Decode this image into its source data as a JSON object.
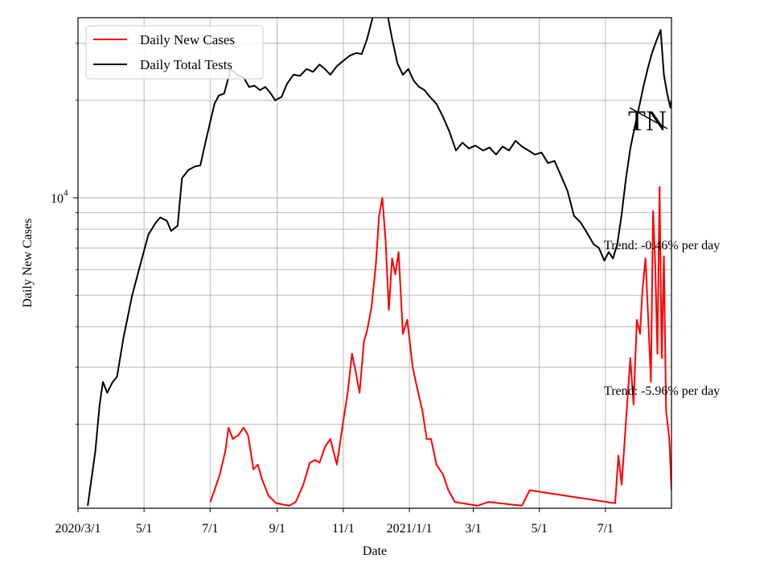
{
  "chart_data": {
    "type": "line",
    "title": "",
    "xlabel": "Date",
    "ylabel": "Daily New Cases",
    "y_scale": "log",
    "xlim": [
      "2020-03-01",
      "2021-08-31"
    ],
    "ylim": [
      1100,
      36000
    ],
    "grid": true,
    "legend_position": "top-left",
    "x_ticks": [
      {
        "date": "2020-03-01",
        "label": "2020/3/1"
      },
      {
        "date": "2020-05-01",
        "label": "5/1"
      },
      {
        "date": "2020-07-01",
        "label": "7/1"
      },
      {
        "date": "2020-09-01",
        "label": "9/1"
      },
      {
        "date": "2020-11-01",
        "label": "11/1"
      },
      {
        "date": "2021-01-01",
        "label": "2021/1/1"
      },
      {
        "date": "2021-03-01",
        "label": "3/1"
      },
      {
        "date": "2021-05-01",
        "label": "5/1"
      },
      {
        "date": "2021-07-01",
        "label": "7/1"
      }
    ],
    "y_major_ticks": [
      {
        "value": 10000,
        "base": "10",
        "exponent": "4"
      }
    ],
    "y_minor_ticks": [
      2000,
      3000,
      4000,
      5000,
      6000,
      7000,
      8000,
      9000,
      20000,
      30000
    ],
    "series": [
      {
        "name": "Daily New Cases",
        "color": "#ff0000",
        "points": [
          [
            "2020-07-01",
            1150
          ],
          [
            "2020-07-05",
            1250
          ],
          [
            "2020-07-10",
            1400
          ],
          [
            "2020-07-15",
            1650
          ],
          [
            "2020-07-18",
            1950
          ],
          [
            "2020-07-22",
            1800
          ],
          [
            "2020-07-27",
            1850
          ],
          [
            "2020-08-01",
            1950
          ],
          [
            "2020-08-05",
            1850
          ],
          [
            "2020-08-10",
            1450
          ],
          [
            "2020-08-14",
            1500
          ],
          [
            "2020-08-18",
            1350
          ],
          [
            "2020-08-24",
            1200
          ],
          [
            "2020-08-31",
            1140
          ],
          [
            "2020-09-06",
            1130
          ],
          [
            "2020-09-12",
            1120
          ],
          [
            "2020-09-18",
            1150
          ],
          [
            "2020-09-25",
            1300
          ],
          [
            "2020-10-01",
            1520
          ],
          [
            "2020-10-06",
            1550
          ],
          [
            "2020-10-10",
            1520
          ],
          [
            "2020-10-15",
            1700
          ],
          [
            "2020-10-20",
            1800
          ],
          [
            "2020-10-26",
            1500
          ],
          [
            "2020-11-01",
            2050
          ],
          [
            "2020-11-05",
            2500
          ],
          [
            "2020-11-09",
            3300
          ],
          [
            "2020-11-12",
            2950
          ],
          [
            "2020-11-16",
            2500
          ],
          [
            "2020-11-20",
            3600
          ],
          [
            "2020-11-23",
            3900
          ],
          [
            "2020-11-27",
            4600
          ],
          [
            "2020-12-01",
            6200
          ],
          [
            "2020-12-04",
            8800
          ],
          [
            "2020-12-07",
            10000
          ],
          [
            "2020-12-10",
            7400
          ],
          [
            "2020-12-13",
            4500
          ],
          [
            "2020-12-16",
            6500
          ],
          [
            "2020-12-19",
            5800
          ],
          [
            "2020-12-22",
            6800
          ],
          [
            "2020-12-26",
            3800
          ],
          [
            "2020-12-30",
            4200
          ],
          [
            "2021-01-04",
            3000
          ],
          [
            "2021-01-08",
            2600
          ],
          [
            "2021-01-13",
            2200
          ],
          [
            "2021-01-17",
            1800
          ],
          [
            "2021-01-21",
            1800
          ],
          [
            "2021-01-26",
            1500
          ],
          [
            "2021-02-01",
            1400
          ],
          [
            "2021-02-06",
            1250
          ],
          [
            "2021-02-12",
            1150
          ],
          [
            "2021-03-05",
            1120
          ],
          [
            "2021-03-15",
            1150
          ],
          [
            "2021-04-15",
            1120
          ],
          [
            "2021-04-22",
            1250
          ],
          [
            "2021-07-10",
            1140
          ],
          [
            "2021-07-13",
            1600
          ],
          [
            "2021-07-16",
            1300
          ],
          [
            "2021-07-20",
            2050
          ],
          [
            "2021-07-24",
            3200
          ],
          [
            "2021-07-27",
            2300
          ],
          [
            "2021-07-30",
            4200
          ],
          [
            "2021-08-02",
            3800
          ],
          [
            "2021-08-04",
            5100
          ],
          [
            "2021-08-07",
            6500
          ],
          [
            "2021-08-10",
            3900
          ],
          [
            "2021-08-12",
            2700
          ],
          [
            "2021-08-14",
            9100
          ],
          [
            "2021-08-16",
            6200
          ],
          [
            "2021-08-18",
            3300
          ],
          [
            "2021-08-20",
            10800
          ],
          [
            "2021-08-22",
            3200
          ],
          [
            "2021-08-24",
            6600
          ],
          [
            "2021-08-26",
            2200
          ],
          [
            "2021-08-29",
            1800
          ],
          [
            "2021-08-31",
            1250
          ]
        ]
      },
      {
        "name": "Daily Total Tests",
        "color": "#000000",
        "points": [
          [
            "2020-03-10",
            1120
          ],
          [
            "2020-03-14",
            1400
          ],
          [
            "2020-03-17",
            1650
          ],
          [
            "2020-03-21",
            2300
          ],
          [
            "2020-03-24",
            2700
          ],
          [
            "2020-03-28",
            2500
          ],
          [
            "2020-04-02",
            2700
          ],
          [
            "2020-04-06",
            2800
          ],
          [
            "2020-04-12",
            3700
          ],
          [
            "2020-04-20",
            5000
          ],
          [
            "2020-04-28",
            6300
          ],
          [
            "2020-05-05",
            7700
          ],
          [
            "2020-05-12",
            8400
          ],
          [
            "2020-05-16",
            8700
          ],
          [
            "2020-05-22",
            8500
          ],
          [
            "2020-05-26",
            7900
          ],
          [
            "2020-06-01",
            8200
          ],
          [
            "2020-06-05",
            11500
          ],
          [
            "2020-06-11",
            12200
          ],
          [
            "2020-06-17",
            12500
          ],
          [
            "2020-06-22",
            12600
          ],
          [
            "2020-06-27",
            15000
          ],
          [
            "2020-07-05",
            19500
          ],
          [
            "2020-07-09",
            20700
          ],
          [
            "2020-07-14",
            21000
          ],
          [
            "2020-07-20",
            25000
          ],
          [
            "2020-07-26",
            24000
          ],
          [
            "2020-08-01",
            23500
          ],
          [
            "2020-08-06",
            22000
          ],
          [
            "2020-08-11",
            22200
          ],
          [
            "2020-08-16",
            21500
          ],
          [
            "2020-08-21",
            22000
          ],
          [
            "2020-08-26",
            21000
          ],
          [
            "2020-08-30",
            20000
          ],
          [
            "2020-09-05",
            20500
          ],
          [
            "2020-09-10",
            22500
          ],
          [
            "2020-09-16",
            24000
          ],
          [
            "2020-09-22",
            23800
          ],
          [
            "2020-09-28",
            25000
          ],
          [
            "2020-10-04",
            24500
          ],
          [
            "2020-10-10",
            25800
          ],
          [
            "2020-10-15",
            25000
          ],
          [
            "2020-10-20",
            24000
          ],
          [
            "2020-10-26",
            25500
          ],
          [
            "2020-11-01",
            26500
          ],
          [
            "2020-11-07",
            27500
          ],
          [
            "2020-11-13",
            28000
          ],
          [
            "2020-11-18",
            27800
          ],
          [
            "2020-11-23",
            31000
          ],
          [
            "2020-11-28",
            36000
          ],
          [
            "2020-12-03",
            38500
          ],
          [
            "2020-12-06",
            44000
          ],
          [
            "2020-12-09",
            42000
          ],
          [
            "2020-12-13",
            35000
          ],
          [
            "2020-12-16",
            31000
          ],
          [
            "2020-12-21",
            26000
          ],
          [
            "2020-12-26",
            24000
          ],
          [
            "2020-12-31",
            25000
          ],
          [
            "2021-01-05",
            23000
          ],
          [
            "2021-01-10",
            22000
          ],
          [
            "2021-01-15",
            21500
          ],
          [
            "2021-01-20",
            20500
          ],
          [
            "2021-01-26",
            19500
          ],
          [
            "2021-02-01",
            17800
          ],
          [
            "2021-02-07",
            16000
          ],
          [
            "2021-02-13",
            14000
          ],
          [
            "2021-02-19",
            14800
          ],
          [
            "2021-02-25",
            14200
          ],
          [
            "2021-03-03",
            14500
          ],
          [
            "2021-03-10",
            14000
          ],
          [
            "2021-03-16",
            14300
          ],
          [
            "2021-03-22",
            13600
          ],
          [
            "2021-03-28",
            14400
          ],
          [
            "2021-04-03",
            14000
          ],
          [
            "2021-04-09",
            15000
          ],
          [
            "2021-04-15",
            14400
          ],
          [
            "2021-04-21",
            14000
          ],
          [
            "2021-04-27",
            13600
          ],
          [
            "2021-05-03",
            13800
          ],
          [
            "2021-05-09",
            12800
          ],
          [
            "2021-05-15",
            13000
          ],
          [
            "2021-05-21",
            11700
          ],
          [
            "2021-05-27",
            10500
          ],
          [
            "2021-06-02",
            8800
          ],
          [
            "2021-06-08",
            8400
          ],
          [
            "2021-06-14",
            7800
          ],
          [
            "2021-06-20",
            7200
          ],
          [
            "2021-06-25",
            7000
          ],
          [
            "2021-06-30",
            6400
          ],
          [
            "2021-07-04",
            6800
          ],
          [
            "2021-07-08",
            6500
          ],
          [
            "2021-07-12",
            7200
          ],
          [
            "2021-07-16",
            8900
          ],
          [
            "2021-07-20",
            11500
          ],
          [
            "2021-07-24",
            14200
          ],
          [
            "2021-07-28",
            16500
          ],
          [
            "2021-08-01",
            19000
          ],
          [
            "2021-08-05",
            22000
          ],
          [
            "2021-08-09",
            25000
          ],
          [
            "2021-08-13",
            28000
          ],
          [
            "2021-08-17",
            30500
          ],
          [
            "2021-08-21",
            33000
          ],
          [
            "2021-08-24",
            24000
          ],
          [
            "2021-08-27",
            21000
          ],
          [
            "2021-08-30",
            19000
          ],
          [
            "2021-08-31",
            20000
          ]
        ]
      }
    ],
    "annotations": [
      {
        "text": "Trend: -0.46% per day"
      },
      {
        "text": "Trend: -5.96% per day"
      },
      {
        "text": "TN"
      }
    ]
  }
}
